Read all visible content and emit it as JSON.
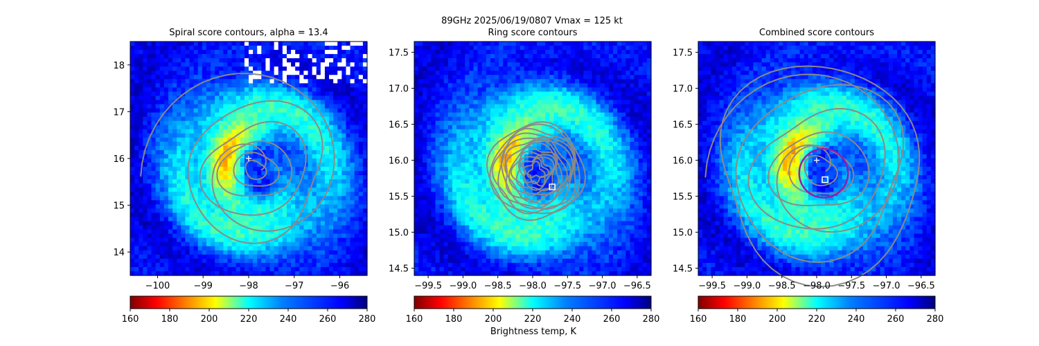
{
  "suptitle": "89GHz  2025/06/19/0807    Vmax = 125 kt",
  "colorbar_label": "Brightness temp, K",
  "chart_data": [
    {
      "type": "heatmap",
      "title": "Spiral score contours, alpha = 13.4",
      "xlim": [
        -100.6,
        -95.4
      ],
      "ylim": [
        13.5,
        18.5
      ],
      "xticks": [
        -100,
        -99,
        -98,
        -97,
        -96
      ],
      "xtick_labels": [
        "−100",
        "−99",
        "−98",
        "−97",
        "−96"
      ],
      "yticks": [
        14,
        15,
        16,
        17,
        18
      ],
      "ytick_labels": [
        "14",
        "15",
        "16",
        "17",
        "18"
      ],
      "center_marker": {
        "symbol": "+",
        "x": -98.0,
        "y": 16.0
      },
      "colorbar": {
        "min": 160,
        "max": 280,
        "ticks": [
          160,
          180,
          200,
          220,
          240,
          260,
          280
        ],
        "colormap": "jet_reversed"
      },
      "eye": {
        "x": -97.85,
        "y": 15.75
      }
    },
    {
      "type": "heatmap",
      "title": "Ring score contours",
      "xlim": [
        -99.7,
        -96.3
      ],
      "ylim": [
        14.4,
        17.65
      ],
      "xticks": [
        -99.5,
        -99.0,
        -98.5,
        -98.0,
        -97.5,
        -97.0,
        -96.5
      ],
      "xtick_labels": [
        "−99.5",
        "−99.0",
        "−98.5",
        "−98.0",
        "−97.5",
        "−97.0",
        "−96.5"
      ],
      "yticks": [
        14.5,
        15.0,
        15.5,
        16.0,
        16.5,
        17.0,
        17.5
      ],
      "ytick_labels": [
        "14.5",
        "15.0",
        "15.5",
        "16.0",
        "16.5",
        "17.0",
        "17.5"
      ],
      "square_marker": {
        "x": -97.72,
        "y": 15.63
      },
      "colorbar": {
        "min": 160,
        "max": 280,
        "ticks": [
          160,
          180,
          200,
          220,
          240,
          260,
          280
        ],
        "colormap": "jet_reversed"
      },
      "eye": {
        "x": -97.95,
        "y": 15.85
      }
    },
    {
      "type": "heatmap",
      "title": "Combined score contours",
      "xlim": [
        -99.7,
        -96.3
      ],
      "ylim": [
        14.4,
        17.65
      ],
      "xticks": [
        -99.5,
        -99.0,
        -98.5,
        -98.0,
        -97.5,
        -97.0,
        -96.5
      ],
      "xtick_labels": [
        "−99.5",
        "−99.0",
        "−98.5",
        "−98.0",
        "−97.5",
        "−97.0",
        "−96.5"
      ],
      "yticks": [
        14.5,
        15.0,
        15.5,
        16.0,
        16.5,
        17.0,
        17.5
      ],
      "ytick_labels": [
        "14.5",
        "15.0",
        "15.5",
        "16.0",
        "16.5",
        "17.0",
        "17.5"
      ],
      "center_marker": {
        "symbol": "+",
        "x": -98.0,
        "y": 16.0
      },
      "square_marker": {
        "x": -97.88,
        "y": 15.73
      },
      "fitted_circle": {
        "x": -97.9,
        "y": 15.82,
        "r_deg": 0.35,
        "color": "#9a1aa8"
      },
      "colorbar": {
        "min": 160,
        "max": 280,
        "ticks": [
          160,
          180,
          200,
          220,
          240,
          260,
          280
        ],
        "colormap": "jet_reversed"
      },
      "eye": {
        "x": -97.95,
        "y": 15.85
      }
    }
  ]
}
